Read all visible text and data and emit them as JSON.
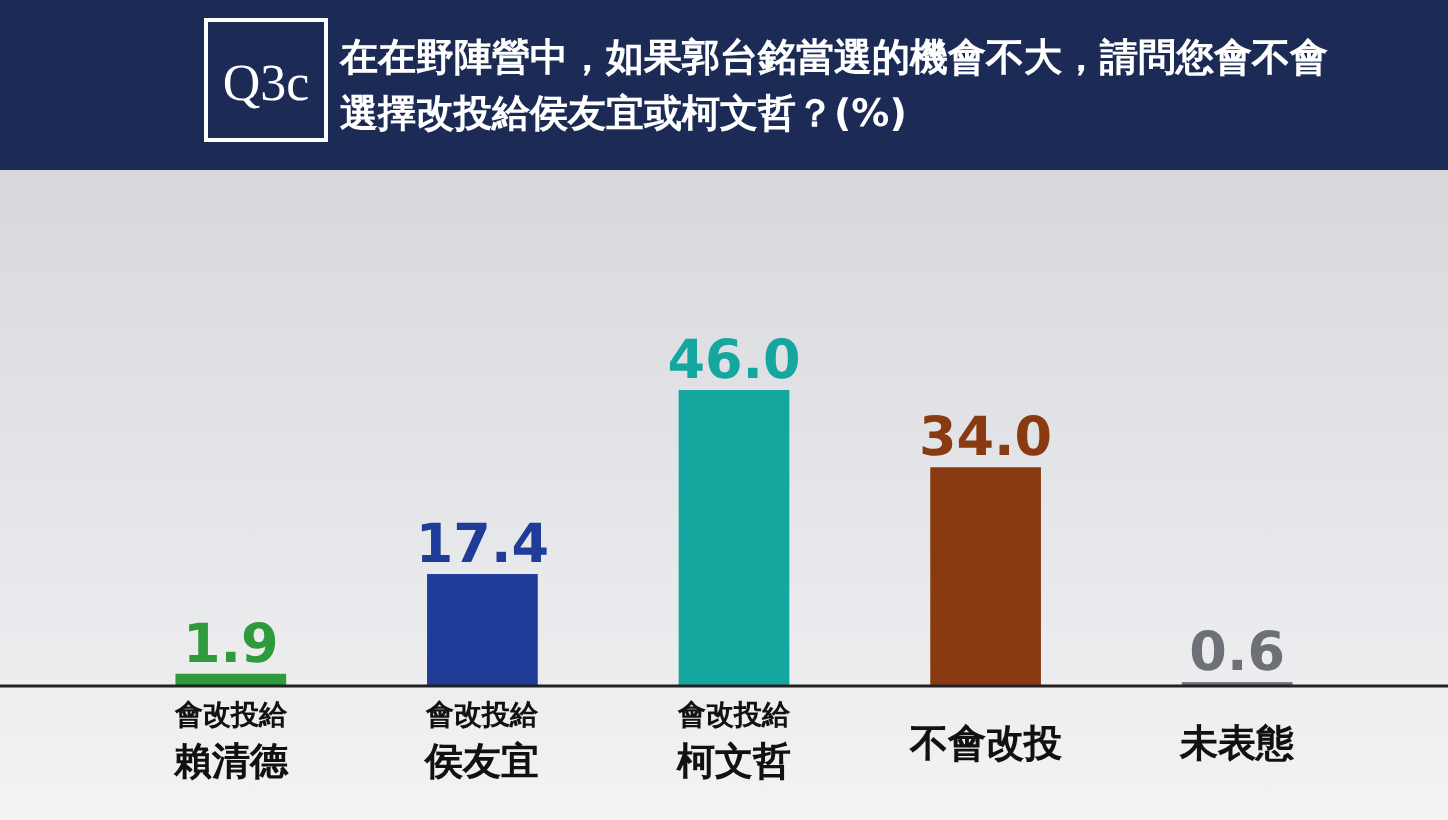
{
  "chart_data": {
    "type": "bar",
    "title": "在在野陣營中，如果郭台銘當選的機會不大，請問您會不會選擇改投給侯友宜或柯文哲？(%)",
    "annotations": [
      "Q3c"
    ],
    "categories": [
      "會改投給賴清德",
      "會改投給侯友宜",
      "會改投給柯文哲",
      "不會改投",
      "未表態"
    ],
    "values": [
      1.9,
      17.4,
      46.0,
      34.0,
      0.6
    ],
    "colors": [
      "#2f9a3c",
      "#1f3c98",
      "#16a6a0",
      "#8a3a10",
      "#6e7078"
    ],
    "value_labels": [
      "1.9",
      "17.4",
      "46.0",
      "34.0",
      "0.6"
    ]
  }
}
